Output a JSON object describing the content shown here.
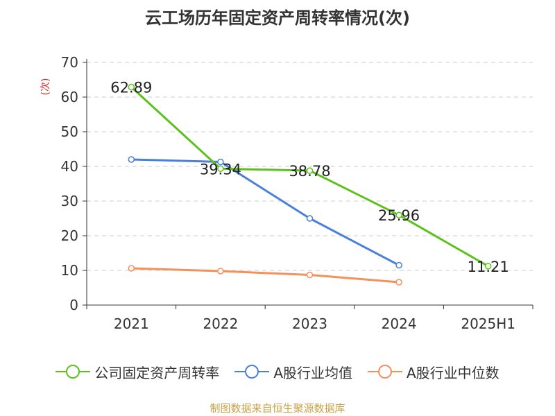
{
  "title": "云工场历年固定资产周转率情况(次)",
  "source_note": "制图数据来自恒生聚源数据库",
  "chart_data": {
    "type": "line",
    "title": "云工场历年固定资产周转率情况(次)",
    "ylabel": "(次)",
    "xlabel": "",
    "categories": [
      "2021",
      "2022",
      "2023",
      "2024",
      "2025H1"
    ],
    "ylim": [
      0,
      70
    ],
    "yticks": [
      0,
      10,
      20,
      30,
      40,
      50,
      60,
      70
    ],
    "grid": true,
    "legend_position": "bottom",
    "series": [
      {
        "name": "公司固定资产周转率",
        "color": "#5ac21a",
        "values": [
          62.89,
          39.34,
          38.78,
          25.96,
          11.21
        ],
        "labels": [
          "62.89",
          "39.34",
          "38.78",
          "25.96",
          "11.21"
        ]
      },
      {
        "name": "A股行业均值",
        "color": "#4a7fdc",
        "values": [
          42.0,
          41.3,
          25.0,
          11.5,
          null
        ]
      },
      {
        "name": "A股行业中位数",
        "color": "#f4905a",
        "values": [
          10.6,
          9.8,
          8.7,
          6.6,
          null
        ]
      }
    ]
  }
}
